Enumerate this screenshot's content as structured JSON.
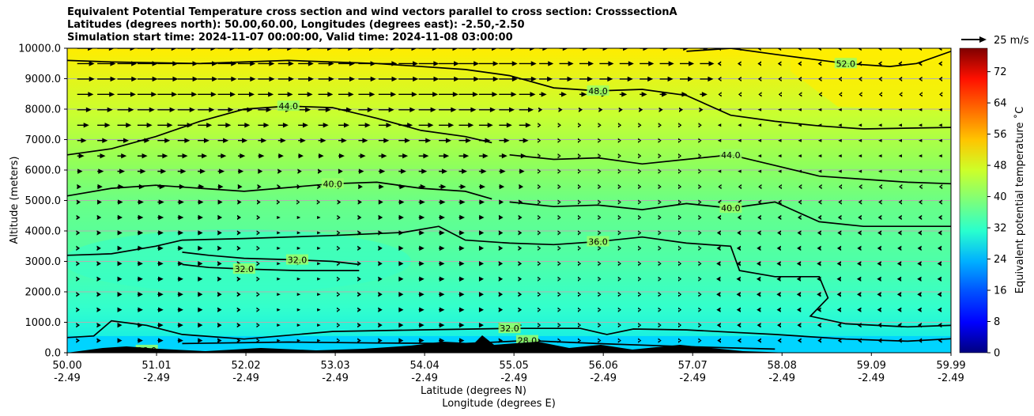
{
  "chart_data": {
    "type": "heatmap",
    "title_lines": [
      "Equivalent Potential Temperature cross section and wind vectors parallel to cross section: CrosssectionA",
      "Latitudes (degrees north): 50.00,60.00, Longitudes (degrees east): -2.50,-2.50",
      "Simulation start time: 2024-11-07 00:00:00, Valid time: 2024-11-08 03:00:00"
    ],
    "xlabel_lat": "Latitude (degrees N)",
    "xlabel_lon": "Longitude (degrees E)",
    "ylabel": "Altitude (meters)",
    "x_ticks_lat": [
      "50.00",
      "51.01",
      "52.02",
      "53.03",
      "54.04",
      "55.05",
      "56.06",
      "57.07",
      "58.08",
      "59.09",
      "59.99"
    ],
    "x_ticks_lon": [
      "-2.49",
      "-2.49",
      "-2.49",
      "-2.49",
      "-2.49",
      "-2.49",
      "-2.49",
      "-2.49",
      "-2.49",
      "-2.49",
      "-2.49"
    ],
    "y_ticks": [
      "0.0",
      "1000.0",
      "2000.0",
      "3000.0",
      "4000.0",
      "5000.0",
      "6000.0",
      "7000.0",
      "8000.0",
      "9000.0",
      "10000.0"
    ],
    "xlim": [
      50.0,
      59.99
    ],
    "ylim": [
      0,
      10000
    ],
    "colorbar": {
      "label": "Equivalent potential temperature ˚C",
      "ticks": [
        "0",
        "8",
        "16",
        "24",
        "32",
        "40",
        "48",
        "56",
        "64",
        "72"
      ],
      "range": [
        0,
        78
      ],
      "colors": [
        "#00007f",
        "#0000ff",
        "#007fff",
        "#00e4ff",
        "#4bffab",
        "#7fff7f",
        "#c1ff36",
        "#ffe500",
        "#ff9400",
        "#ff2000",
        "#7f0000"
      ]
    },
    "wind_key": {
      "label": "25 m/s",
      "speed": 25
    },
    "contours": [
      {
        "level": "28.0",
        "points": [
          [
            50.35,
            100
          ],
          [
            50.6,
            150
          ],
          [
            50.9,
            80
          ],
          [
            51.2,
            50
          ]
        ]
      },
      {
        "level": "32.0",
        "points": [
          [
            50.0,
            500
          ],
          [
            50.3,
            550
          ],
          [
            50.5,
            1050
          ],
          [
            50.9,
            900
          ],
          [
            51.3,
            600
          ],
          [
            52.0,
            450
          ],
          [
            53.0,
            700
          ],
          [
            54.0,
            750
          ],
          [
            55.0,
            800
          ],
          [
            55.8,
            800
          ],
          [
            56.1,
            600
          ],
          [
            56.4,
            780
          ],
          [
            57.0,
            750
          ],
          [
            58.0,
            600
          ],
          [
            58.8,
            450
          ],
          [
            59.5,
            380
          ],
          [
            59.99,
            460
          ]
        ]
      },
      {
        "level": "28.0",
        "points": [
          [
            51.3,
            300
          ],
          [
            52.5,
            350
          ],
          [
            53.5,
            320
          ],
          [
            54.5,
            300
          ],
          [
            55.2,
            400
          ],
          [
            56.0,
            300
          ],
          [
            57.0,
            200
          ],
          [
            58.0,
            120
          ]
        ]
      },
      {
        "level": "32.0",
        "points": [
          [
            51.3,
            3300
          ],
          [
            51.6,
            3200
          ],
          [
            52.0,
            3100
          ],
          [
            52.6,
            3050
          ],
          [
            53.0,
            3000
          ],
          [
            53.3,
            2900
          ]
        ]
      },
      {
        "level": "32.0",
        "points": [
          [
            51.3,
            2900
          ],
          [
            51.6,
            2800
          ],
          [
            52.0,
            2750
          ],
          [
            52.6,
            2700
          ],
          [
            53.3,
            2700
          ]
        ]
      },
      {
        "level": "36.0",
        "points": [
          [
            50.0,
            3200
          ],
          [
            50.5,
            3250
          ],
          [
            51.0,
            3500
          ],
          [
            51.3,
            3700
          ],
          [
            52.0,
            3750
          ],
          [
            53.0,
            3850
          ],
          [
            53.8,
            3950
          ],
          [
            54.2,
            4150
          ],
          [
            54.5,
            3700
          ],
          [
            55.0,
            3600
          ],
          [
            55.5,
            3550
          ],
          [
            56.0,
            3650
          ],
          [
            56.5,
            3800
          ],
          [
            57.0,
            3600
          ],
          [
            57.5,
            3500
          ],
          [
            57.6,
            2700
          ],
          [
            58.0,
            2500
          ],
          [
            58.5,
            2500
          ],
          [
            58.6,
            1800
          ],
          [
            58.4,
            1200
          ],
          [
            58.8,
            950
          ],
          [
            59.5,
            850
          ],
          [
            59.99,
            900
          ]
        ]
      },
      {
        "level": "40.0",
        "points": [
          [
            50.0,
            5150
          ],
          [
            50.5,
            5400
          ],
          [
            51.0,
            5500
          ],
          [
            52.0,
            5300
          ],
          [
            53.0,
            5550
          ],
          [
            53.5,
            5600
          ],
          [
            54.0,
            5400
          ],
          [
            54.5,
            5300
          ],
          [
            54.8,
            5050
          ]
        ]
      },
      {
        "level": "40.0",
        "points": [
          [
            55.0,
            4950
          ],
          [
            55.5,
            4800
          ],
          [
            56.0,
            4850
          ],
          [
            56.5,
            4700
          ],
          [
            57.0,
            4900
          ],
          [
            57.5,
            4750
          ],
          [
            58.0,
            4950
          ],
          [
            58.5,
            4300
          ],
          [
            59.0,
            4150
          ],
          [
            59.99,
            4150
          ]
        ]
      },
      {
        "level": "44.0",
        "points": [
          [
            50.0,
            6500
          ],
          [
            50.5,
            6700
          ],
          [
            51.0,
            7100
          ],
          [
            51.5,
            7600
          ],
          [
            52.0,
            8000
          ],
          [
            52.5,
            8100
          ],
          [
            53.0,
            8050
          ],
          [
            53.5,
            7700
          ],
          [
            54.0,
            7300
          ],
          [
            54.5,
            7100
          ],
          [
            54.8,
            6900
          ]
        ]
      },
      {
        "level": "44.0",
        "points": [
          [
            55.0,
            6500
          ],
          [
            55.5,
            6350
          ],
          [
            56.0,
            6400
          ],
          [
            56.5,
            6200
          ],
          [
            57.0,
            6350
          ],
          [
            57.5,
            6500
          ],
          [
            58.0,
            6150
          ],
          [
            58.5,
            5800
          ],
          [
            59.0,
            5700
          ],
          [
            59.5,
            5600
          ],
          [
            59.99,
            5550
          ]
        ]
      },
      {
        "level": "48.0",
        "points": [
          [
            50.0,
            9600
          ],
          [
            50.5,
            9550
          ],
          [
            51.5,
            9500
          ],
          [
            52.5,
            9600
          ],
          [
            53.5,
            9500
          ],
          [
            54.5,
            9300
          ],
          [
            55.0,
            9100
          ],
          [
            55.5,
            8700
          ],
          [
            56.0,
            8600
          ],
          [
            56.5,
            8650
          ],
          [
            57.0,
            8450
          ],
          [
            57.5,
            7800
          ],
          [
            58.0,
            7600
          ],
          [
            58.5,
            7450
          ],
          [
            59.0,
            7350
          ],
          [
            59.99,
            7400
          ]
        ]
      },
      {
        "level": "52.0",
        "points": [
          [
            57.0,
            9900
          ],
          [
            57.5,
            10000
          ],
          [
            58.0,
            9800
          ],
          [
            58.8,
            9500
          ],
          [
            59.3,
            9400
          ],
          [
            59.6,
            9500
          ],
          [
            59.99,
            9900
          ]
        ]
      }
    ]
  }
}
